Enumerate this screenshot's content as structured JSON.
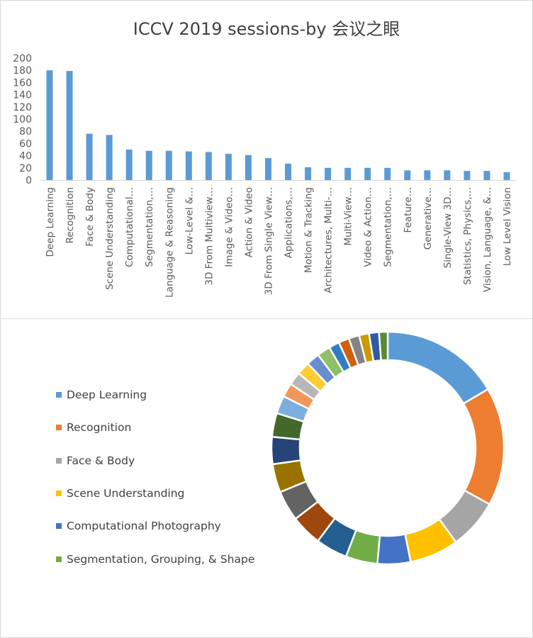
{
  "chart_data": [
    {
      "type": "bar",
      "title": "ICCV 2019 sessions-by 会议之眼",
      "xlabel": "",
      "ylabel": "",
      "ylim": [
        0,
        200
      ],
      "yticks": [
        0,
        20,
        40,
        60,
        80,
        100,
        120,
        140,
        160,
        180,
        200
      ],
      "grid": false,
      "bar_color": "#5b9bd5",
      "categories": [
        "Deep Learning",
        "Recognition",
        "Face & Body",
        "Scene Understanding",
        "Computational…",
        "Segmentation,…",
        "Language & Reasoning",
        "Low-Level &…",
        "3D From Multiview…",
        "Image & Video…",
        "Action & Video",
        "3D From Single View…",
        "Applications,…",
        "Motion & Tracking",
        "Architectures, Multi-…",
        "Multi-View…",
        "Video & Action…",
        "Segmentation,…",
        "Feature…",
        "Generative…",
        "Single-View 3D…",
        "Statistics, Physics,…",
        "Vision, Language, &…",
        "Low Level Vision"
      ],
      "values": [
        180,
        179,
        76,
        74,
        50,
        48,
        48,
        47,
        46,
        43,
        41,
        36,
        27,
        21,
        20,
        20,
        20,
        20,
        16,
        16,
        16,
        15,
        15,
        13
      ]
    },
    {
      "type": "pie",
      "style": "donut",
      "legend_position": "left",
      "legend": [
        "Deep Learning",
        "Recognition",
        "Face & Body",
        "Scene Understanding",
        "Computational Photography",
        "Segmentation, Grouping, & Shape"
      ],
      "values": [
        180,
        179,
        76,
        74,
        50,
        48,
        48,
        47,
        46,
        43,
        41,
        36,
        27,
        21,
        20,
        20,
        20,
        20,
        16,
        16,
        16,
        15,
        15,
        13
      ],
      "colors": [
        "#5b9bd5",
        "#ed7d31",
        "#a5a5a5",
        "#ffc000",
        "#4472c4",
        "#70ad47",
        "#255e91",
        "#9e480e",
        "#636363",
        "#997300",
        "#264478",
        "#43682b",
        "#7cafdd",
        "#f1975a",
        "#b7b7b7",
        "#ffcd33",
        "#698ed0",
        "#8cc168",
        "#327dc2",
        "#d26012",
        "#848484",
        "#cc9a00",
        "#335aa1",
        "#5a8a39"
      ]
    }
  ]
}
